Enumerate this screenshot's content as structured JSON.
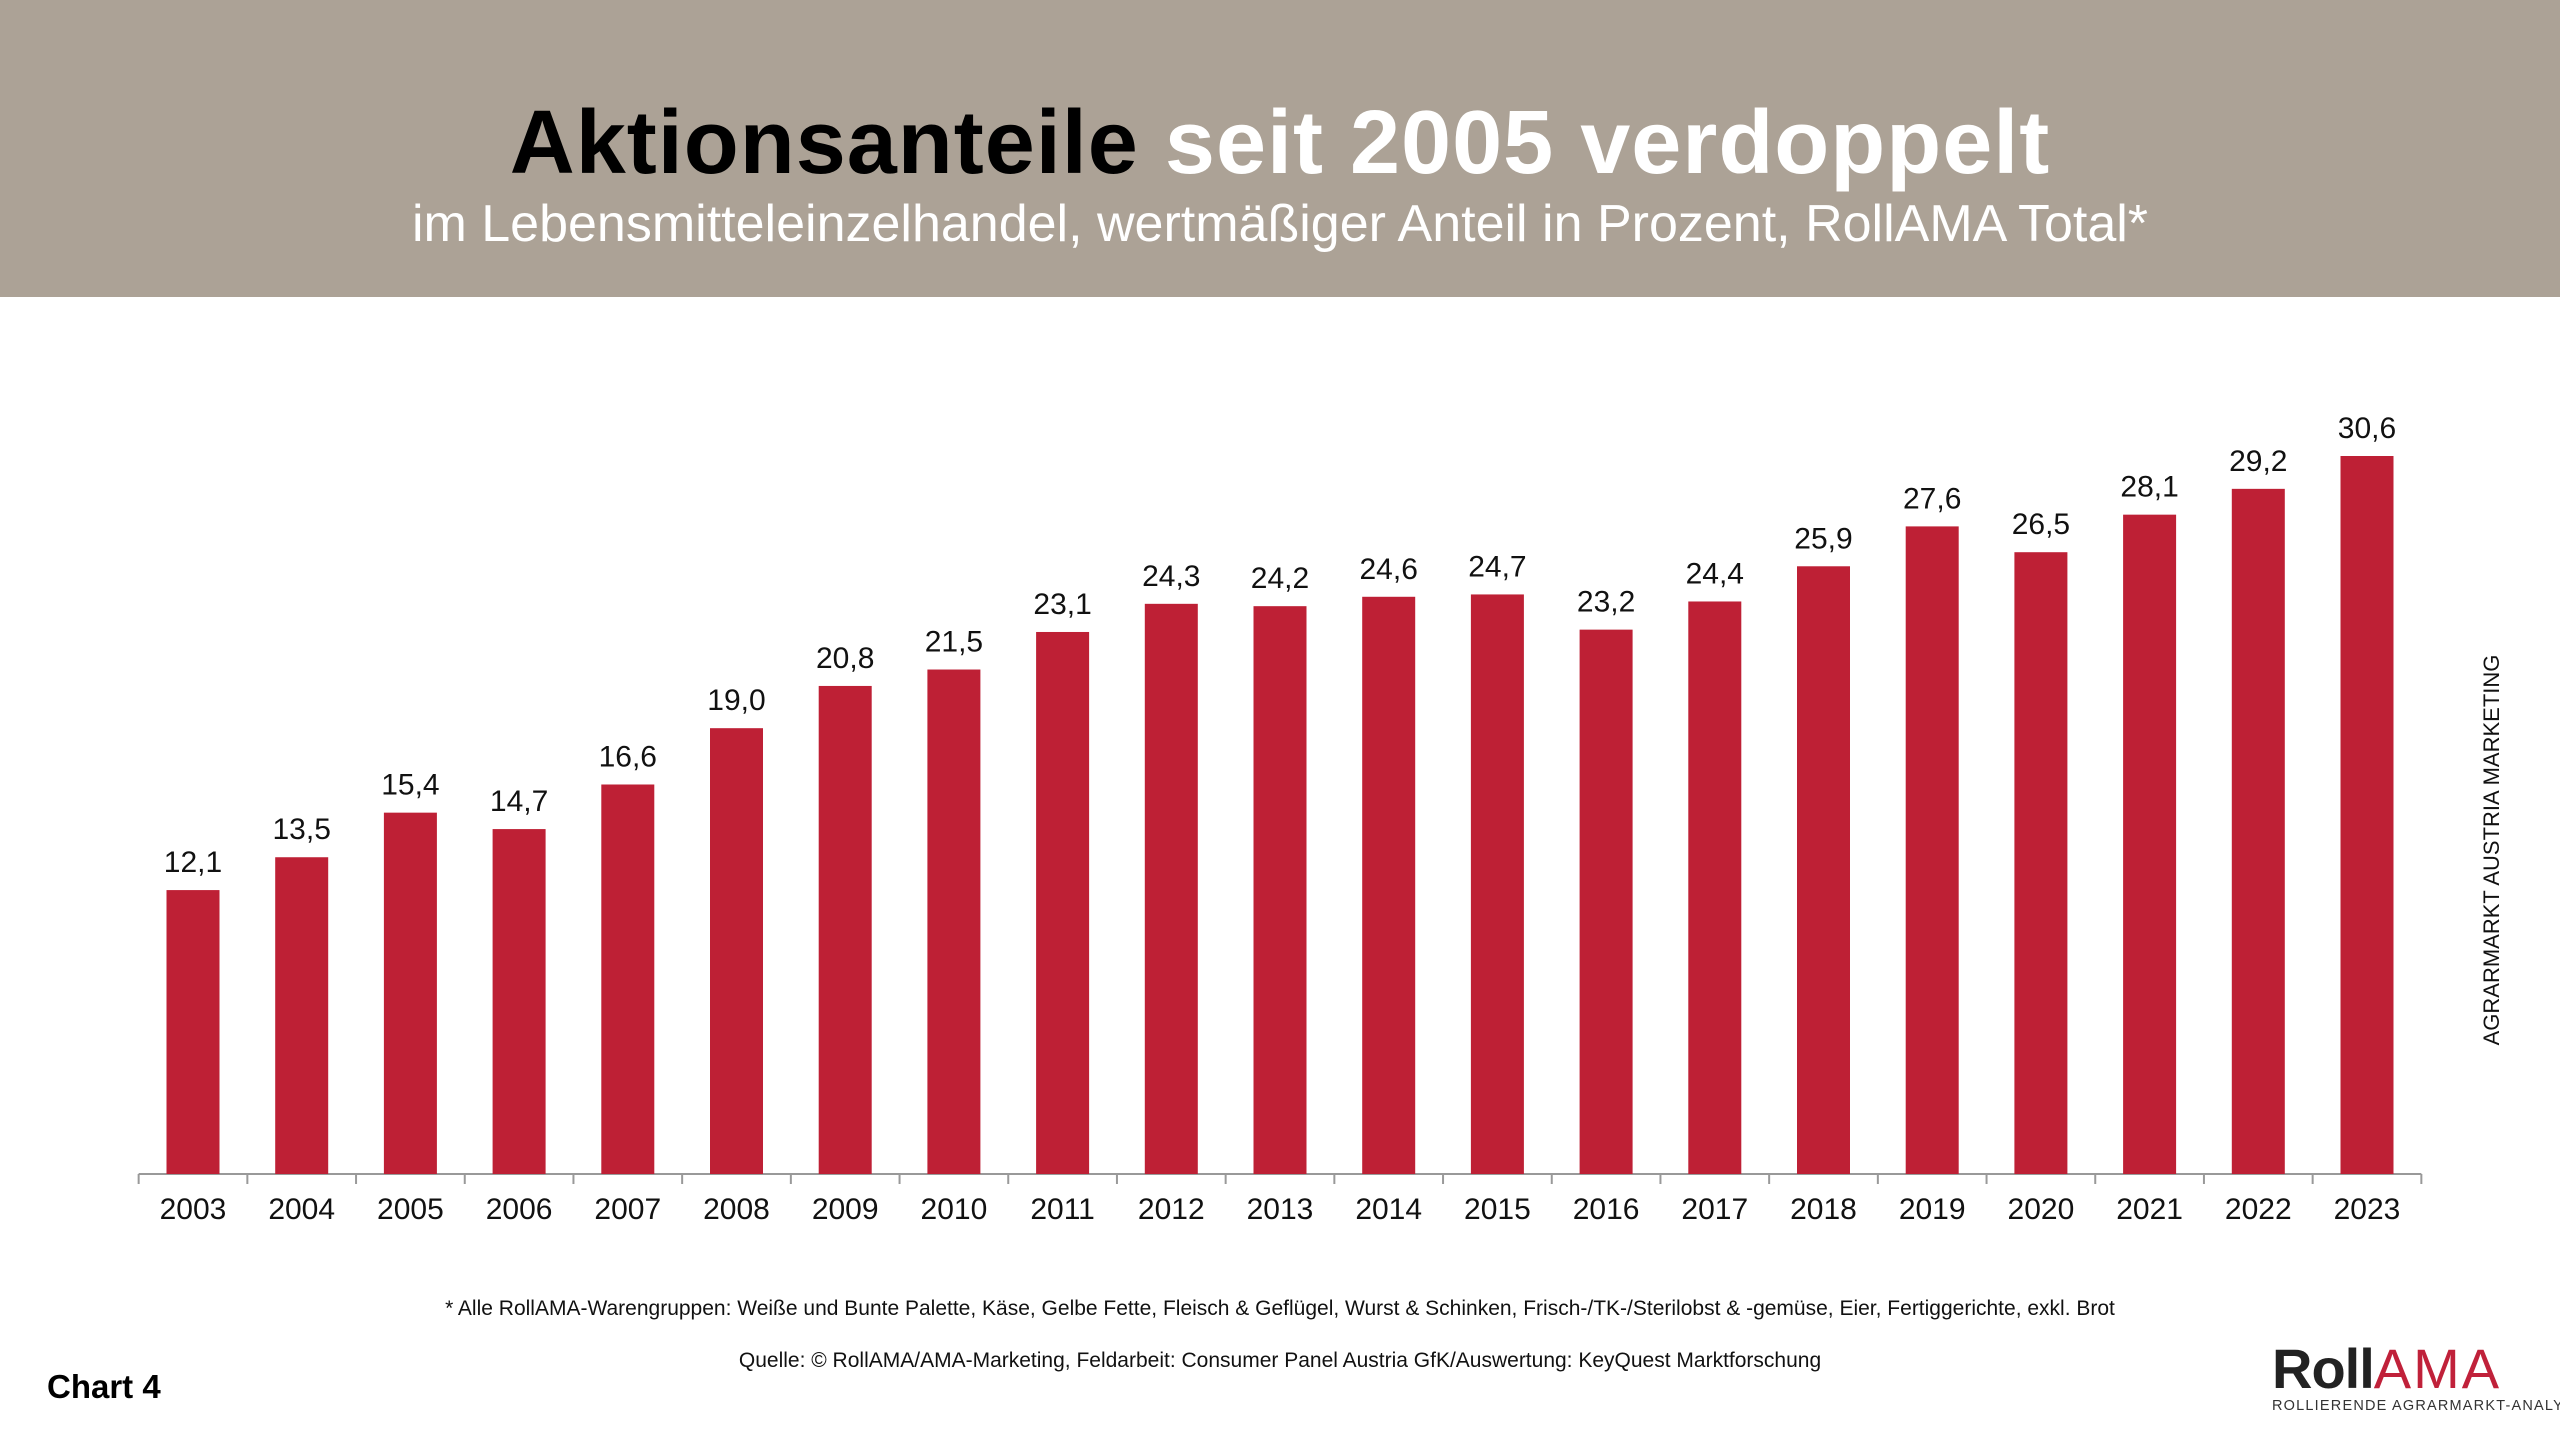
{
  "header": {
    "title_part1": "Aktionsanteile",
    "title_part2": "seit 2005 verdoppelt",
    "subtitle": "im Lebensmitteleinzelhandel, wertmäßiger Anteil in Prozent, RollAMA Total*"
  },
  "side_label": "AGRARMARKT AUSTRIA MARKETING",
  "footnote": "* Alle RollAMA-Warengruppen: Weiße und Bunte Palette, Käse, Gelbe Fette, Fleisch & Geflügel, Wurst & Schinken, Frisch-/TK-/Sterilobst & -gemüse, Eier, Fertiggerichte, exkl. Brot",
  "source": "Quelle: © RollAMA/AMA-Marketing, Feldarbeit: Consumer Panel Austria GfK/Auswertung: KeyQuest Marktforschung",
  "chart_label": "Chart 4",
  "logo": {
    "part1": "Roll",
    "part2": "AMA",
    "tagline": "ROLLIERENDE AGRARMARKT-ANALYSE"
  },
  "colors": {
    "bar": "#be2035",
    "header": "#aca296"
  },
  "chart_data": {
    "type": "bar",
    "title": "Aktionsanteile seit 2005 verdoppelt",
    "subtitle": "im Lebensmitteleinzelhandel, wertmäßiger Anteil in Prozent, RollAMA Total*",
    "categories": [
      "2003",
      "2004",
      "2005",
      "2006",
      "2007",
      "2008",
      "2009",
      "2010",
      "2011",
      "2012",
      "2013",
      "2014",
      "2015",
      "2016",
      "2017",
      "2018",
      "2019",
      "2020",
      "2021",
      "2022",
      "2023"
    ],
    "values": [
      12.1,
      13.5,
      15.4,
      14.7,
      16.6,
      19.0,
      20.8,
      21.5,
      23.1,
      24.3,
      24.2,
      24.6,
      24.7,
      23.2,
      24.4,
      25.9,
      27.6,
      26.5,
      28.1,
      29.2,
      30.6
    ],
    "value_labels": [
      "12,1",
      "13,5",
      "15,4",
      "14,7",
      "16,6",
      "19,0",
      "20,8",
      "21,5",
      "23,1",
      "24,3",
      "24,2",
      "24,6",
      "24,7",
      "23,2",
      "24,4",
      "25,9",
      "27,6",
      "26,5",
      "28,1",
      "29,2",
      "30,6"
    ],
    "ylim": [
      0,
      30.6
    ],
    "grid": false,
    "legend": "none"
  }
}
